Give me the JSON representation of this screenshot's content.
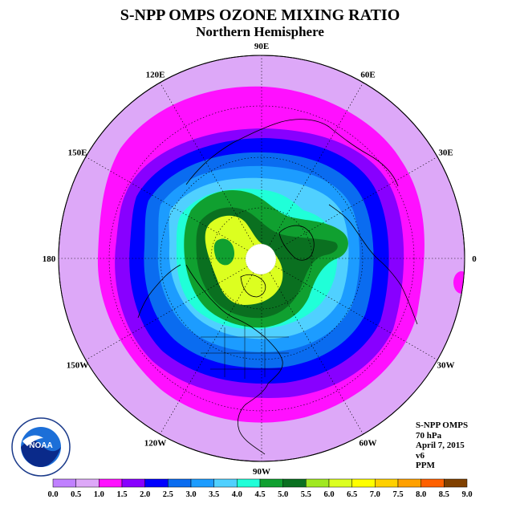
{
  "title": "S-NPP OMPS OZONE MIXING RATIO",
  "subtitle": "Northern Hemisphere",
  "longitude_labels": [
    {
      "text": "90E",
      "lon": 90
    },
    {
      "text": "60E",
      "lon": 60
    },
    {
      "text": "30E",
      "lon": 30
    },
    {
      "text": "0",
      "lon": 0
    },
    {
      "text": "30W",
      "lon": -30
    },
    {
      "text": "60W",
      "lon": -60
    },
    {
      "text": "90W",
      "lon": -90
    },
    {
      "text": "120W",
      "lon": -120
    },
    {
      "text": "150W",
      "lon": -150
    },
    {
      "text": "180",
      "lon": 180
    },
    {
      "text": "150E",
      "lon": 150
    },
    {
      "text": "120E",
      "lon": 120
    }
  ],
  "info": {
    "instrument": "S-NPP OMPS",
    "level": "70 hPa",
    "date": "April 7, 2015",
    "version": "v6",
    "units": "PPM"
  },
  "logo": {
    "text": "NOAA"
  },
  "colorbar": {
    "labels": [
      "0.0",
      "0.5",
      "1.0",
      "1.5",
      "2.0",
      "2.5",
      "3.0",
      "3.5",
      "4.0",
      "4.5",
      "5.0",
      "5.5",
      "6.0",
      "6.5",
      "7.0",
      "7.5",
      "8.0",
      "8.5",
      "9.0"
    ],
    "colors": [
      "#c080ff",
      "#dda8f8",
      "#ff10ff",
      "#8800ff",
      "#0000ff",
      "#0a6cf0",
      "#1c9cff",
      "#50d0ff",
      "#20ffd8",
      "#10a030",
      "#0a7020",
      "#a0e820",
      "#dcff20",
      "#ffff00",
      "#ffd000",
      "#ffa000",
      "#ff6000",
      "#e80000",
      "#804000"
    ]
  },
  "colors": {
    "background_disc": "#dda8f8",
    "magenta_band": "#ff10ff",
    "purple_band": "#8800ff",
    "blue_band": "#0000ff",
    "mid_blue": "#0a6cf0",
    "light_blue": "#1c9cff",
    "sky_blue": "#50d0ff",
    "aqua": "#20ffd8",
    "green": "#10a030",
    "dark_green": "#0a7020",
    "yellow_green": "#dcff20",
    "pole_hole": "#ffffff"
  }
}
